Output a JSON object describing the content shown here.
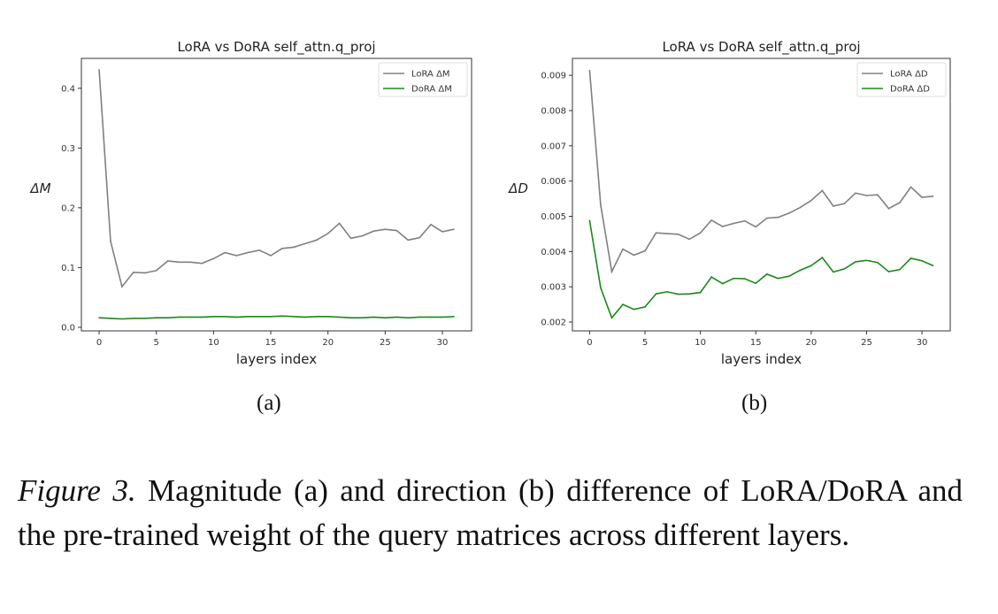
{
  "chart_data": [
    {
      "type": "line",
      "title": "LoRA vs DoRA self_attn.q_proj",
      "xlabel": "layers index",
      "ylabel": "ΔM",
      "xlim": [
        -1.55,
        32.55
      ],
      "ylim": [
        -0.006,
        0.45
      ],
      "xticks": [
        0,
        5,
        10,
        15,
        20,
        25,
        30
      ],
      "yticks": [
        0.0,
        0.1,
        0.2,
        0.3,
        0.4
      ],
      "ytick_labels": [
        "0.0",
        "0.1",
        "0.2",
        "0.3",
        "0.4"
      ],
      "grid": false,
      "legend_position": "top-right",
      "x": [
        0,
        1,
        2,
        3,
        4,
        5,
        6,
        7,
        8,
        9,
        10,
        11,
        12,
        13,
        14,
        15,
        16,
        17,
        18,
        19,
        20,
        21,
        22,
        23,
        24,
        25,
        26,
        27,
        28,
        29,
        30,
        31
      ],
      "series": [
        {
          "name": "LoRA ΔM",
          "color": "#808080",
          "values": [
            0.431,
            0.144,
            0.068,
            0.092,
            0.091,
            0.095,
            0.111,
            0.109,
            0.109,
            0.107,
            0.115,
            0.125,
            0.12,
            0.125,
            0.129,
            0.12,
            0.132,
            0.134,
            0.14,
            0.146,
            0.157,
            0.174,
            0.149,
            0.153,
            0.161,
            0.164,
            0.162,
            0.146,
            0.15,
            0.172,
            0.16,
            0.164
          ]
        },
        {
          "name": "DoRA ΔM",
          "color": "#1a8a1a",
          "values": [
            0.016,
            0.015,
            0.014,
            0.015,
            0.015,
            0.016,
            0.016,
            0.017,
            0.017,
            0.017,
            0.018,
            0.018,
            0.017,
            0.018,
            0.018,
            0.018,
            0.019,
            0.018,
            0.017,
            0.018,
            0.018,
            0.017,
            0.016,
            0.016,
            0.017,
            0.016,
            0.017,
            0.016,
            0.017,
            0.017,
            0.017,
            0.018
          ]
        }
      ],
      "subcaption": "(a)"
    },
    {
      "type": "line",
      "title": "LoRA vs DoRA self_attn.q_proj",
      "xlabel": "layers index",
      "ylabel": "ΔD",
      "xlim": [
        -1.55,
        32.55
      ],
      "ylim": [
        0.00175,
        0.00948
      ],
      "xticks": [
        0,
        5,
        10,
        15,
        20,
        25,
        30
      ],
      "yticks": [
        0.002,
        0.003,
        0.004,
        0.005,
        0.006,
        0.007,
        0.008,
        0.009
      ],
      "ytick_labels": [
        "0.002",
        "0.003",
        "0.004",
        "0.005",
        "0.006",
        "0.007",
        "0.008",
        "0.009"
      ],
      "grid": false,
      "legend_position": "top-right",
      "x": [
        0,
        1,
        2,
        3,
        4,
        5,
        6,
        7,
        8,
        9,
        10,
        11,
        12,
        13,
        14,
        15,
        16,
        17,
        18,
        19,
        20,
        21,
        22,
        23,
        24,
        25,
        26,
        27,
        28,
        29,
        30,
        31
      ],
      "series": [
        {
          "name": "LoRA ΔD",
          "color": "#808080",
          "values": [
            0.00914,
            0.00532,
            0.00343,
            0.00407,
            0.0039,
            0.00402,
            0.00453,
            0.00451,
            0.00449,
            0.00435,
            0.00453,
            0.00489,
            0.00471,
            0.0048,
            0.00487,
            0.0047,
            0.00495,
            0.00497,
            0.00509,
            0.00525,
            0.00545,
            0.00573,
            0.00529,
            0.00536,
            0.00566,
            0.00559,
            0.00561,
            0.00522,
            0.00539,
            0.00583,
            0.00554,
            0.00557
          ]
        },
        {
          "name": "DoRA ΔD",
          "color": "#1a8a1a",
          "values": [
            0.00488,
            0.00297,
            0.00212,
            0.0025,
            0.00236,
            0.00243,
            0.0028,
            0.00286,
            0.00279,
            0.0028,
            0.00284,
            0.00328,
            0.00309,
            0.00324,
            0.00323,
            0.0031,
            0.00336,
            0.00324,
            0.0033,
            0.00347,
            0.0036,
            0.00383,
            0.00342,
            0.00351,
            0.00371,
            0.00375,
            0.00369,
            0.00343,
            0.00349,
            0.00381,
            0.00374,
            0.0036
          ]
        }
      ],
      "subcaption": "(b)"
    }
  ],
  "caption": {
    "label": "Figure 3.",
    "text": " Magnitude (a) and direction (b) difference of LoRA/DoRA and the pre-trained weight of the query matrices across different layers."
  }
}
